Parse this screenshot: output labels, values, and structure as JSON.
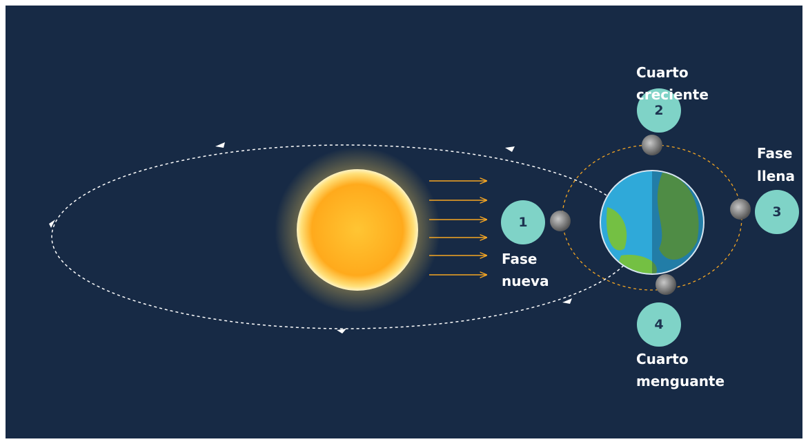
{
  "phases": [
    {
      "number": "1",
      "label": [
        "Fase",
        "nueva"
      ]
    },
    {
      "number": "2",
      "label": [
        "Cuarto",
        "creciente"
      ]
    },
    {
      "number": "3",
      "label": [
        "Fase",
        "llena"
      ]
    },
    {
      "number": "4",
      "label": [
        "Cuarto",
        "menguante"
      ]
    }
  ]
}
